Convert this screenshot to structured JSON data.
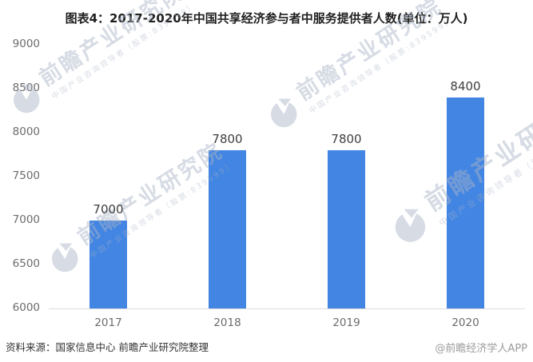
{
  "title": "图表4：2017-2020年中国共享经济参与者中服务提供者人数(单位：万人)",
  "footer": {
    "source": "资料来源：国家信息中心 前瞻产业研究院整理",
    "credit": "@前瞻经济学人APP"
  },
  "watermark": {
    "brand": "前瞻产业研究院",
    "tagline": "中国产业咨询领导者（股票:839599）"
  },
  "colors": {
    "bar": "#4285e2",
    "axis_line": "#dcdcdc",
    "tick_label": "#6b6b6b",
    "value_label": "#3f3f3f",
    "watermark": "rgba(170,180,198,0.48)"
  },
  "chart_data": {
    "type": "bar",
    "categories": [
      "2017",
      "2018",
      "2019",
      "2020"
    ],
    "values": [
      7000,
      7800,
      7800,
      8400
    ],
    "title": "图表4：2017-2020年中国共享经济参与者中服务提供者人数(单位：万人)",
    "xlabel": "",
    "ylabel": "",
    "unit": "万人",
    "ylim": [
      6000,
      9000
    ],
    "yticks": [
      6000,
      6500,
      7000,
      7500,
      8000,
      8500,
      9000
    ],
    "grid": false,
    "legend_position": "none",
    "bar_color": "#4285e2",
    "value_labels_shown": true
  }
}
